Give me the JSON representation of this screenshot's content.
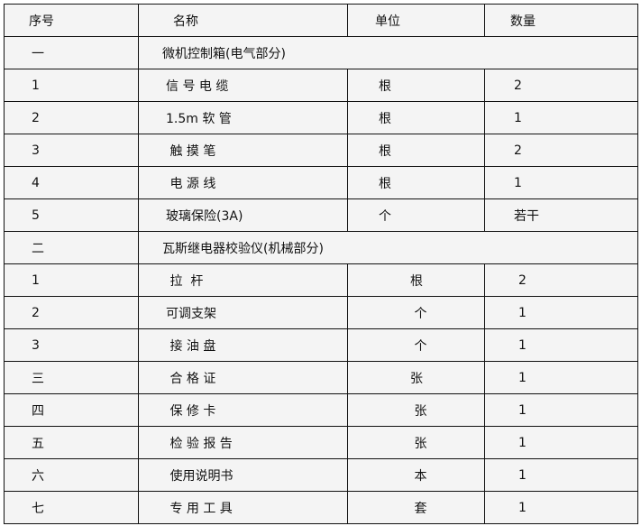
{
  "headers": [
    "序号",
    "名称",
    "单位",
    "数量"
  ],
  "rows": [
    {
      "type": "section",
      "no": "一",
      "name": "微机控制箱(电气部分)"
    },
    {
      "type": "item",
      "no": "1",
      "name": "信 号 电 缆",
      "unit": "根",
      "qty": "2",
      "g": 1
    },
    {
      "type": "item",
      "no": "2",
      "name": "1.5m 软 管",
      "unit": "根",
      "qty": "1",
      "g": 1
    },
    {
      "type": "item",
      "no": "3",
      "name": " 触 摸 笔",
      "unit": "根",
      "qty": "2",
      "g": 1
    },
    {
      "type": "item",
      "no": "4",
      "name": " 电 源 线",
      "unit": "根",
      "qty": "1",
      "g": 1
    },
    {
      "type": "item",
      "no": "5",
      "name": "玻璃保险(3A)",
      "unit": "个",
      "qty": "若干",
      "g": 1
    },
    {
      "type": "section",
      "no": "二",
      "name": "瓦斯继电器校验仪(机械部分)"
    },
    {
      "type": "item",
      "no": "1",
      "name": " 拉  杆",
      "unit": "根",
      "qty": "2",
      "g": 2
    },
    {
      "type": "item",
      "no": "2",
      "name": "可调支架",
      "unit": " 个",
      "qty": "1",
      "g": 2
    },
    {
      "type": "item",
      "no": "3",
      "name": " 接 油 盘",
      "unit": " 个",
      "qty": "1",
      "g": 2
    },
    {
      "type": "item",
      "no": "三",
      "name": " 合 格 证",
      "unit": "张",
      "qty": "1",
      "g": 2
    },
    {
      "type": "item",
      "no": "四",
      "name": " 保 修 卡",
      "unit": " 张",
      "qty": "1",
      "g": 2
    },
    {
      "type": "item",
      "no": "五",
      "name": " 检 验 报 告",
      "unit": " 张",
      "qty": "1",
      "g": 2
    },
    {
      "type": "item",
      "no": "六",
      "name": " 使用说明书",
      "unit": " 本",
      "qty": "1",
      "g": 2
    },
    {
      "type": "item",
      "no": "七",
      "name": " 专 用 工 具",
      "unit": " 套",
      "qty": "1",
      "g": 2
    }
  ]
}
